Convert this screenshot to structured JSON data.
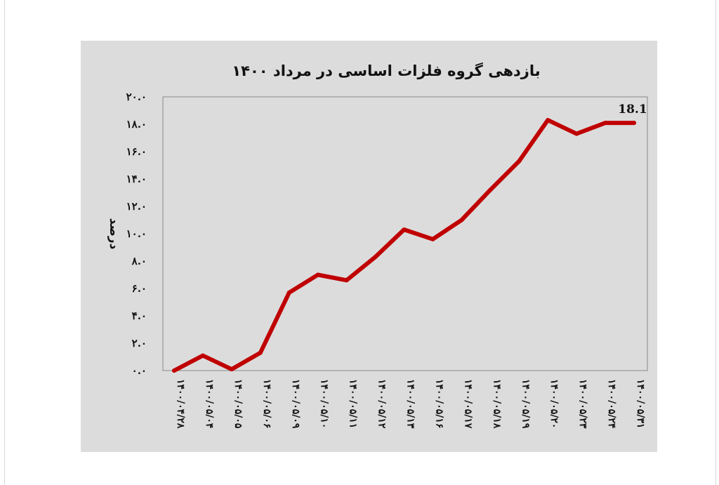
{
  "chart_data": {
    "type": "line",
    "title": "بازدهی گروه فلزات اساسی در مرداد ۱۴۰۰",
    "ylabel": "درصد",
    "xlabel": "",
    "ylim": [
      0,
      20
    ],
    "y_ticks": [
      "۰.۰",
      "۲.۰",
      "۴.۰",
      "۶.۰",
      "۸.۰",
      "۱۰.۰",
      "۱۲.۰",
      "۱۴.۰",
      "۱۶.۰",
      "۱۸.۰",
      "۲۰.۰"
    ],
    "categories": [
      "۱۴۰۰/۰۴/۲۸",
      "۱۴۰۰/۰۵/۰۴",
      "۱۴۰۰/۰۵/۰۵",
      "۱۴۰۰/۰۵/۰۶",
      "۱۴۰۰/۰۵/۰۹",
      "۱۴۰۰/۰۵/۱۰",
      "۱۴۰۰/۰۵/۱۱",
      "۱۴۰۰/۰۵/۱۲",
      "۱۴۰۰/۰۵/۱۳",
      "۱۴۰۰/۰۵/۱۶",
      "۱۴۰۰/۰۵/۱۷",
      "۱۴۰۰/۰۵/۱۸",
      "۱۴۰۰/۰۵/۱۹",
      "۱۴۰۰/۰۵/۲۰",
      "۱۴۰۰/۰۵/۲۳",
      "۱۴۰۰/۰۵/۲۴",
      "۱۴۰۰/۰۵/۳۱"
    ],
    "series": [
      {
        "values": [
          0.0,
          1.1,
          0.1,
          1.3,
          5.7,
          7.0,
          6.6,
          8.3,
          10.3,
          9.6,
          11.0,
          13.2,
          15.3,
          18.3,
          17.3,
          18.1,
          18.1
        ]
      }
    ],
    "last_value_label": "18.1",
    "line_color": "#c00000",
    "grid": false,
    "legend": "none"
  }
}
